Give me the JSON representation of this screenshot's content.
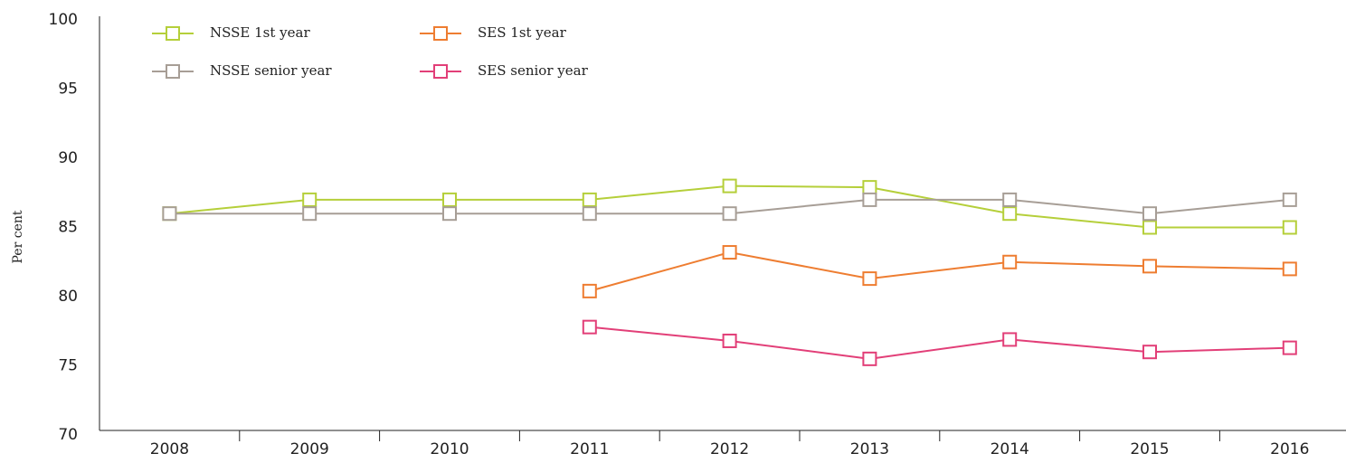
{
  "chart_data": {
    "type": "line",
    "y_label": "Per cent",
    "categories": [
      "2008",
      "2009",
      "2010",
      "2011",
      "2012",
      "2013",
      "2014",
      "2015",
      "2016"
    ],
    "series": [
      {
        "name": "NSSE 1st year",
        "color": "#b5cf3a",
        "values": [
          86,
          87,
          87,
          87,
          88,
          87.9,
          86,
          85,
          85
        ]
      },
      {
        "name": "SES 1st year",
        "color": "#ee7d31",
        "values": [
          null,
          null,
          null,
          80.4,
          83.2,
          81.3,
          82.5,
          82.2,
          82.0
        ]
      },
      {
        "name": "NSSE senior year",
        "color": "#a79e96",
        "values": [
          86,
          86,
          86,
          86,
          86,
          87,
          87,
          86,
          87
        ]
      },
      {
        "name": "SES senior year",
        "color": "#e23f78",
        "values": [
          null,
          null,
          null,
          77.8,
          76.8,
          75.5,
          76.9,
          76.0,
          76.3
        ]
      }
    ],
    "ylim": [
      70,
      100
    ],
    "yticks": [
      70,
      75,
      80,
      85,
      90,
      95,
      100
    ],
    "legend": "top-left"
  }
}
